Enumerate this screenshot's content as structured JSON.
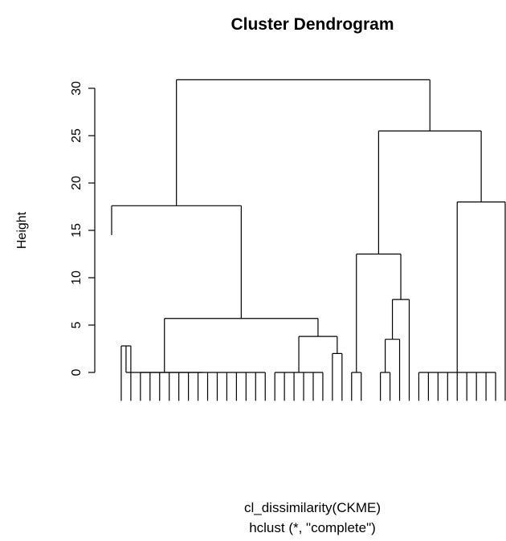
{
  "chart_data": {
    "type": "dendrogram",
    "title": "Cluster Dendrogram",
    "xlabel": "cl_dissimilarity(CKME)",
    "sublabel": "hclust (*, \"complete\")",
    "ylabel": "Height",
    "ylim": [
      0,
      31
    ],
    "y_ticks": [
      0,
      5,
      10,
      15,
      20,
      25,
      30
    ],
    "grid": false,
    "leaves": 42,
    "merges": [
      {
        "height": 30.9,
        "note": "root"
      },
      {
        "height": 25.5
      },
      {
        "height": 18.0
      },
      {
        "height": 17.6
      },
      {
        "height": 14.5
      },
      {
        "height": 12.5
      },
      {
        "height": 7.7
      },
      {
        "height": 5.7
      },
      {
        "height": 4.7
      },
      {
        "height": 3.8
      },
      {
        "height": 3.5
      },
      {
        "height": 2.8
      },
      {
        "height": 2.0
      },
      {
        "height": 0.0
      }
    ]
  }
}
